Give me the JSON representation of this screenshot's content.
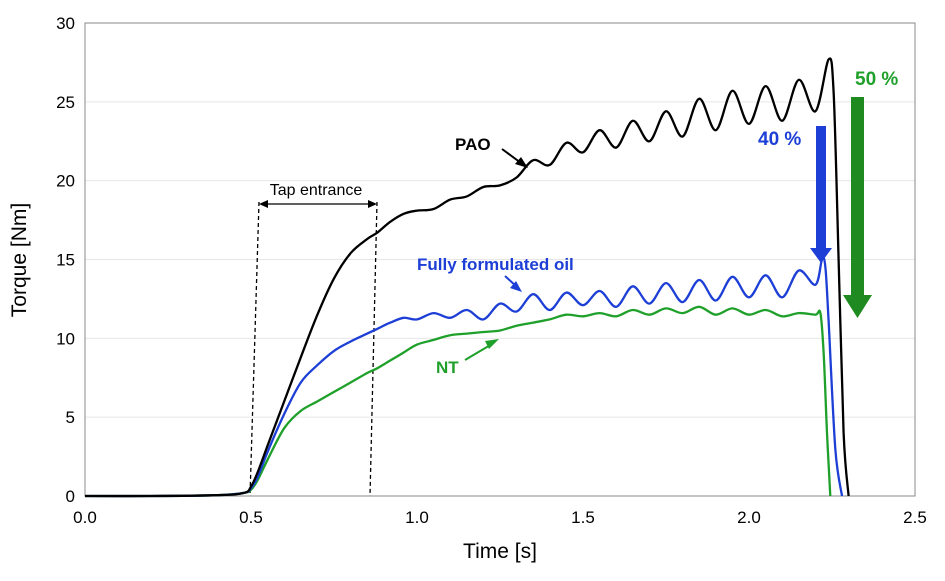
{
  "chart_data": {
    "type": "line",
    "xlabel": "Time [s]",
    "ylabel": "Torque [Nm]",
    "xlim": [
      0,
      2.5
    ],
    "ylim": [
      0,
      30
    ],
    "xticks": [
      "0.0",
      "0.5",
      "1.0",
      "1.5",
      "2.0",
      "2.5"
    ],
    "yticks": [
      "0",
      "5",
      "10",
      "15",
      "20",
      "25",
      "30"
    ],
    "grid": "horizontal",
    "series": [
      {
        "name": "PAO",
        "color": "#000000",
        "x": [
          0.0,
          0.2,
          0.4,
          0.48,
          0.5,
          0.52,
          0.55,
          0.6,
          0.65,
          0.7,
          0.75,
          0.8,
          0.85,
          0.88,
          0.92,
          0.96,
          1.0,
          1.05,
          1.1,
          1.15,
          1.2,
          1.25,
          1.3,
          1.35,
          1.4,
          1.45,
          1.5,
          1.55,
          1.6,
          1.65,
          1.7,
          1.75,
          1.8,
          1.85,
          1.9,
          1.95,
          2.0,
          2.05,
          2.1,
          2.15,
          2.2,
          2.24,
          2.255,
          2.27,
          2.285,
          2.3
        ],
        "y": [
          0.0,
          0.0,
          0.05,
          0.2,
          0.6,
          1.5,
          3.2,
          6.0,
          8.8,
          11.5,
          13.8,
          15.4,
          16.3,
          16.7,
          17.4,
          17.9,
          18.1,
          18.2,
          18.8,
          19.0,
          19.6,
          19.7,
          20.2,
          21.3,
          21.0,
          22.4,
          21.8,
          23.2,
          22.1,
          23.8,
          22.5,
          24.4,
          22.8,
          25.2,
          23.2,
          25.7,
          23.6,
          26.0,
          23.8,
          26.4,
          24.4,
          27.7,
          25.5,
          15.0,
          4.0,
          0.0
        ]
      },
      {
        "name": "Fully formulated oil",
        "color": "#1d3fd6",
        "x": [
          0.0,
          0.2,
          0.4,
          0.48,
          0.5,
          0.52,
          0.55,
          0.6,
          0.65,
          0.7,
          0.75,
          0.8,
          0.85,
          0.88,
          0.92,
          0.96,
          1.0,
          1.05,
          1.1,
          1.15,
          1.2,
          1.25,
          1.3,
          1.35,
          1.4,
          1.45,
          1.5,
          1.55,
          1.6,
          1.65,
          1.7,
          1.75,
          1.8,
          1.85,
          1.9,
          1.95,
          2.0,
          2.05,
          2.1,
          2.15,
          2.2,
          2.22,
          2.23,
          2.24,
          2.26,
          2.28
        ],
        "y": [
          0.0,
          0.0,
          0.05,
          0.2,
          0.5,
          1.2,
          2.8,
          5.2,
          7.2,
          8.3,
          9.2,
          9.8,
          10.3,
          10.6,
          11.0,
          11.3,
          11.2,
          11.6,
          11.3,
          11.8,
          11.2,
          12.2,
          11.7,
          12.8,
          11.8,
          12.9,
          12.1,
          13.0,
          12.0,
          13.3,
          12.2,
          13.5,
          12.3,
          13.7,
          12.4,
          13.9,
          12.6,
          14.0,
          12.6,
          14.3,
          13.4,
          15.0,
          14.5,
          11.0,
          3.0,
          0.0
        ]
      },
      {
        "name": "NT",
        "color": "#1fa02a",
        "x": [
          0.0,
          0.2,
          0.4,
          0.48,
          0.5,
          0.52,
          0.55,
          0.6,
          0.65,
          0.7,
          0.75,
          0.8,
          0.85,
          0.88,
          0.92,
          0.96,
          1.0,
          1.05,
          1.1,
          1.15,
          1.2,
          1.25,
          1.3,
          1.35,
          1.4,
          1.45,
          1.5,
          1.55,
          1.6,
          1.65,
          1.7,
          1.75,
          1.8,
          1.85,
          1.9,
          1.95,
          2.0,
          2.05,
          2.1,
          2.15,
          2.2,
          2.215,
          2.225,
          2.235,
          2.245
        ],
        "y": [
          0.0,
          0.0,
          0.05,
          0.2,
          0.4,
          1.0,
          2.3,
          4.3,
          5.4,
          6.0,
          6.6,
          7.2,
          7.8,
          8.1,
          8.6,
          9.1,
          9.6,
          9.9,
          10.2,
          10.3,
          10.4,
          10.5,
          10.8,
          11.0,
          11.2,
          11.5,
          11.4,
          11.6,
          11.4,
          11.8,
          11.5,
          11.9,
          11.6,
          12.0,
          11.5,
          11.9,
          11.5,
          11.8,
          11.4,
          11.6,
          11.5,
          11.6,
          9.0,
          4.0,
          0.0
        ]
      }
    ],
    "annotations": {
      "tap_entrance": "Tap entrance",
      "pao_label": "PAO",
      "ffo_label": "Fully formulated oil",
      "nt_label": "NT",
      "reduction_blue": "40 %",
      "reduction_green": "50 %"
    }
  }
}
